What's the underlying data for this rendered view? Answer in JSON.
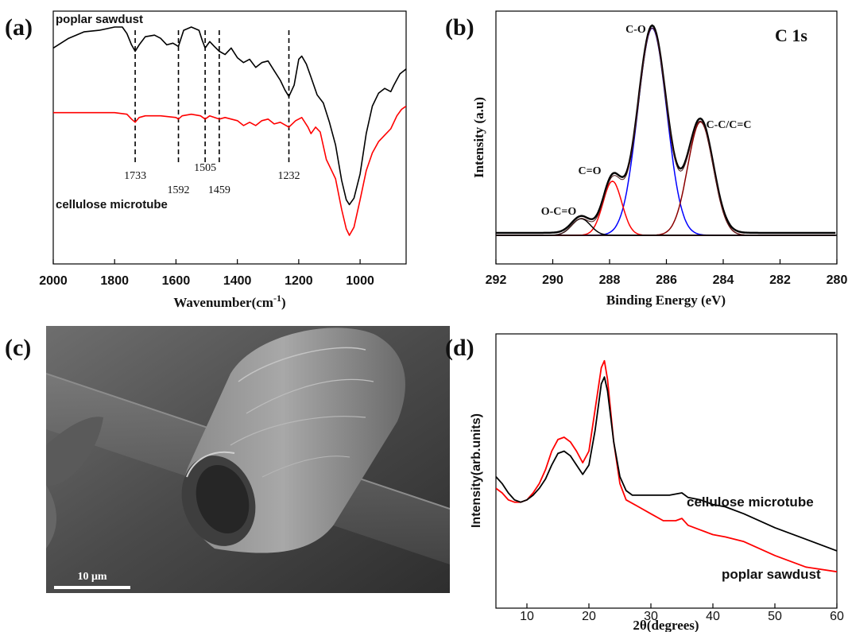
{
  "panels": {
    "a": {
      "label": "(a)"
    },
    "b": {
      "label": "(b)"
    },
    "c": {
      "label": "(c)",
      "scale_bar": "10 μm"
    },
    "d": {
      "label": "(d)"
    }
  },
  "chart_data": [
    {
      "id": "a",
      "type": "line",
      "xlabel": "Wavenumber(cm",
      "xlabel_sup": "-1",
      "xlabel_close": ")",
      "xlim": [
        2000,
        850
      ],
      "xticks": [
        "2000",
        "1800",
        "1600",
        "1400",
        "1200",
        "1000"
      ],
      "peaks": [
        {
          "x": 1733,
          "label": "1733"
        },
        {
          "x": 1592,
          "label": "1592"
        },
        {
          "x": 1505,
          "label": "1505"
        },
        {
          "x": 1459,
          "label": "1459"
        },
        {
          "x": 1232,
          "label": "1232"
        }
      ],
      "series": [
        {
          "name": "poplar sawdust",
          "color": "#000000",
          "points": [
            [
              2000,
              0.86
            ],
            [
              1950,
              0.92
            ],
            [
              1900,
              0.96
            ],
            [
              1850,
              0.97
            ],
            [
              1800,
              0.99
            ],
            [
              1775,
              0.99
            ],
            [
              1760,
              0.95
            ],
            [
              1745,
              0.88
            ],
            [
              1733,
              0.84
            ],
            [
              1720,
              0.88
            ],
            [
              1700,
              0.93
            ],
            [
              1670,
              0.94
            ],
            [
              1650,
              0.92
            ],
            [
              1630,
              0.88
            ],
            [
              1610,
              0.89
            ],
            [
              1592,
              0.87
            ],
            [
              1575,
              0.97
            ],
            [
              1550,
              0.99
            ],
            [
              1525,
              0.97
            ],
            [
              1515,
              0.91
            ],
            [
              1505,
              0.86
            ],
            [
              1490,
              0.9
            ],
            [
              1475,
              0.87
            ],
            [
              1459,
              0.84
            ],
            [
              1440,
              0.82
            ],
            [
              1420,
              0.86
            ],
            [
              1400,
              0.8
            ],
            [
              1380,
              0.77
            ],
            [
              1360,
              0.79
            ],
            [
              1340,
              0.74
            ],
            [
              1320,
              0.77
            ],
            [
              1300,
              0.78
            ],
            [
              1280,
              0.72
            ],
            [
              1260,
              0.66
            ],
            [
              1245,
              0.6
            ],
            [
              1232,
              0.56
            ],
            [
              1215,
              0.63
            ],
            [
              1200,
              0.79
            ],
            [
              1190,
              0.81
            ],
            [
              1175,
              0.76
            ],
            [
              1160,
              0.68
            ],
            [
              1140,
              0.57
            ],
            [
              1120,
              0.52
            ],
            [
              1100,
              0.4
            ],
            [
              1080,
              0.26
            ],
            [
              1060,
              0.04
            ],
            [
              1045,
              -0.08
            ],
            [
              1035,
              -0.11
            ],
            [
              1020,
              -0.07
            ],
            [
              1000,
              0.08
            ],
            [
              980,
              0.33
            ],
            [
              960,
              0.5
            ],
            [
              940,
              0.58
            ],
            [
              920,
              0.61
            ],
            [
              900,
              0.59
            ],
            [
              890,
              0.63
            ],
            [
              870,
              0.7
            ],
            [
              850,
              0.73
            ]
          ]
        },
        {
          "name": "cellulose microtube",
          "color": "#ff0000",
          "points": [
            [
              2000,
              0.46
            ],
            [
              1950,
              0.46
            ],
            [
              1900,
              0.46
            ],
            [
              1850,
              0.46
            ],
            [
              1800,
              0.46
            ],
            [
              1760,
              0.45
            ],
            [
              1745,
              0.42
            ],
            [
              1733,
              0.4
            ],
            [
              1720,
              0.43
            ],
            [
              1700,
              0.44
            ],
            [
              1650,
              0.44
            ],
            [
              1600,
              0.43
            ],
            [
              1592,
              0.42
            ],
            [
              1580,
              0.44
            ],
            [
              1550,
              0.45
            ],
            [
              1520,
              0.44
            ],
            [
              1505,
              0.42
            ],
            [
              1490,
              0.44
            ],
            [
              1459,
              0.42
            ],
            [
              1440,
              0.43
            ],
            [
              1420,
              0.42
            ],
            [
              1400,
              0.41
            ],
            [
              1380,
              0.38
            ],
            [
              1360,
              0.4
            ],
            [
              1340,
              0.38
            ],
            [
              1320,
              0.41
            ],
            [
              1300,
              0.42
            ],
            [
              1280,
              0.39
            ],
            [
              1260,
              0.4
            ],
            [
              1232,
              0.37
            ],
            [
              1210,
              0.41
            ],
            [
              1190,
              0.43
            ],
            [
              1170,
              0.37
            ],
            [
              1160,
              0.33
            ],
            [
              1145,
              0.37
            ],
            [
              1130,
              0.34
            ],
            [
              1110,
              0.17
            ],
            [
              1095,
              0.11
            ],
            [
              1080,
              0.05
            ],
            [
              1060,
              -0.14
            ],
            [
              1045,
              -0.26
            ],
            [
              1035,
              -0.3
            ],
            [
              1020,
              -0.25
            ],
            [
              1000,
              -0.08
            ],
            [
              980,
              0.1
            ],
            [
              960,
              0.21
            ],
            [
              940,
              0.28
            ],
            [
              920,
              0.32
            ],
            [
              900,
              0.36
            ],
            [
              880,
              0.44
            ],
            [
              865,
              0.48
            ],
            [
              850,
              0.5
            ]
          ]
        }
      ]
    },
    {
      "id": "b",
      "type": "line",
      "title": "C 1s",
      "xlabel": "Binding Energy (eV)",
      "ylabel": "Intensity (a.u)",
      "xlim": [
        292,
        280
      ],
      "xticks": [
        "292",
        "290",
        "288",
        "286",
        "284",
        "282",
        "280"
      ],
      "components": [
        {
          "label": "C-O",
          "center": 286.5,
          "height": 0.995,
          "width": 0.85,
          "color": "#0000ff"
        },
        {
          "label": "C-C/C=C",
          "center": 284.8,
          "height": 0.545,
          "width": 0.75,
          "color": "#8b0000"
        },
        {
          "label": "C=O",
          "center": 287.9,
          "height": 0.26,
          "width": 0.55,
          "color": "#ff0000"
        },
        {
          "label": "O-C=O",
          "center": 289.0,
          "height": 0.08,
          "width": 0.55,
          "color": "#000000"
        }
      ],
      "envelope_color": "#000000"
    },
    {
      "id": "d",
      "type": "line",
      "xlabel": "2θ(degrees)",
      "ylabel": "Intensity(arb.units)",
      "xlim": [
        5,
        60
      ],
      "xticks": [
        "10",
        "20",
        "30",
        "40",
        "50",
        "60"
      ],
      "series": [
        {
          "name": "cellulose microtube",
          "color": "#000000",
          "points": [
            [
              5,
              0.55
            ],
            [
              6,
              0.52
            ],
            [
              7,
              0.48
            ],
            [
              8,
              0.45
            ],
            [
              9,
              0.44
            ],
            [
              10,
              0.45
            ],
            [
              11,
              0.47
            ],
            [
              12,
              0.5
            ],
            [
              13,
              0.54
            ],
            [
              14,
              0.6
            ],
            [
              15,
              0.65
            ],
            [
              16,
              0.66
            ],
            [
              17,
              0.64
            ],
            [
              18,
              0.6
            ],
            [
              19,
              0.56
            ],
            [
              20,
              0.6
            ],
            [
              21,
              0.75
            ],
            [
              22,
              0.95
            ],
            [
              22.5,
              0.98
            ],
            [
              23,
              0.92
            ],
            [
              24,
              0.7
            ],
            [
              25,
              0.55
            ],
            [
              26,
              0.49
            ],
            [
              27,
              0.47
            ],
            [
              30,
              0.47
            ],
            [
              33,
              0.47
            ],
            [
              35,
              0.48
            ],
            [
              36,
              0.46
            ],
            [
              38,
              0.45
            ],
            [
              40,
              0.43
            ],
            [
              42,
              0.42
            ],
            [
              45,
              0.39
            ],
            [
              50,
              0.33
            ],
            [
              55,
              0.28
            ],
            [
              60,
              0.23
            ]
          ]
        },
        {
          "name": "poplar sawdust",
          "color": "#ff0000",
          "points": [
            [
              5,
              0.5
            ],
            [
              6,
              0.48
            ],
            [
              7,
              0.45
            ],
            [
              8,
              0.44
            ],
            [
              9,
              0.44
            ],
            [
              10,
              0.45
            ],
            [
              11,
              0.48
            ],
            [
              12,
              0.52
            ],
            [
              13,
              0.58
            ],
            [
              14,
              0.66
            ],
            [
              15,
              0.71
            ],
            [
              16,
              0.72
            ],
            [
              17,
              0.7
            ],
            [
              18,
              0.66
            ],
            [
              19,
              0.61
            ],
            [
              20,
              0.66
            ],
            [
              21,
              0.84
            ],
            [
              22,
              1.02
            ],
            [
              22.5,
              1.05
            ],
            [
              23,
              0.97
            ],
            [
              24,
              0.7
            ],
            [
              25,
              0.52
            ],
            [
              26,
              0.45
            ],
            [
              28,
              0.42
            ],
            [
              30,
              0.39
            ],
            [
              32,
              0.36
            ],
            [
              34,
              0.36
            ],
            [
              35,
              0.37
            ],
            [
              36,
              0.34
            ],
            [
              38,
              0.32
            ],
            [
              40,
              0.3
            ],
            [
              42,
              0.29
            ],
            [
              45,
              0.27
            ],
            [
              50,
              0.21
            ],
            [
              55,
              0.16
            ],
            [
              60,
              0.14
            ]
          ]
        }
      ]
    }
  ]
}
